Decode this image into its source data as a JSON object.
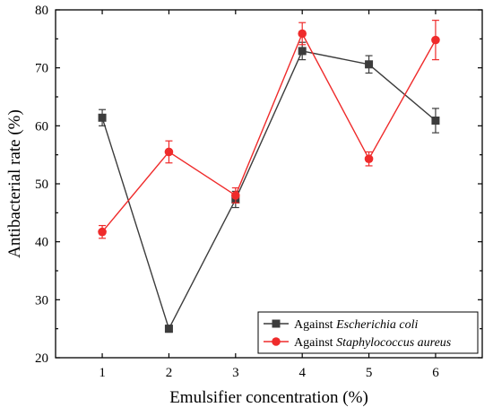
{
  "chart_data": {
    "type": "line",
    "xlabel": "Emulsifier concentration (%)",
    "ylabel": "Antibacterial rate (%)",
    "x": [
      1,
      2,
      3,
      4,
      5,
      6
    ],
    "xlim": [
      0.3,
      6.7
    ],
    "ylim": [
      20,
      80
    ],
    "xticks": [
      "1",
      "2",
      "3",
      "4",
      "5",
      "6"
    ],
    "yticks": [
      "20",
      "30",
      "40",
      "50",
      "60",
      "70",
      "80"
    ],
    "grid": false,
    "legend_position": "bottom-right",
    "series": [
      {
        "name_prefix": "Against ",
        "name_italic": "Escherichia coli",
        "color": "#3c3c3c",
        "marker": "square",
        "values": [
          61.4,
          25.0,
          47.3,
          72.9,
          70.6,
          60.9
        ],
        "errors": [
          1.4,
          0.6,
          1.4,
          1.5,
          1.5,
          2.1
        ]
      },
      {
        "name_prefix": "Against ",
        "name_italic": "Staphylococcus aureus",
        "color": "#ef2b2b",
        "marker": "circle",
        "values": [
          41.7,
          55.5,
          48.0,
          75.9,
          54.3,
          74.8
        ],
        "errors": [
          1.1,
          1.9,
          1.3,
          1.9,
          1.2,
          3.4
        ]
      }
    ]
  }
}
